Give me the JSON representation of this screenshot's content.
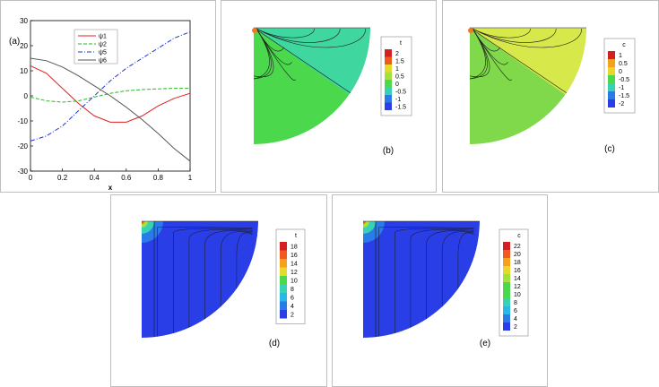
{
  "chart_data": [
    {
      "type": "line",
      "panel_label": "(a)",
      "xlabel": "x",
      "ylabel": "",
      "xlim": [
        0,
        1
      ],
      "ylim": [
        -30,
        30
      ],
      "x_ticks": [
        "0",
        "0.2",
        "0.4",
        "0.6",
        "0.8",
        "1"
      ],
      "y_ticks": [
        "30",
        "20",
        "10",
        "0",
        "-10",
        "-20",
        "-30"
      ],
      "legend_position": "top-center",
      "series": [
        {
          "name": "ψ1",
          "color": "#e02020",
          "dash": "solid",
          "x": [
            0,
            0.1,
            0.2,
            0.3,
            0.4,
            0.5,
            0.6,
            0.7,
            0.8,
            0.9,
            1.0
          ],
          "y": [
            12,
            9,
            3,
            -3,
            -8,
            -10.5,
            -10.5,
            -8,
            -4,
            -1,
            1
          ]
        },
        {
          "name": "ψ2",
          "color": "#22bb22",
          "dash": "dashed",
          "x": [
            0,
            0.1,
            0.2,
            0.3,
            0.4,
            0.5,
            0.6,
            0.7,
            0.8,
            0.9,
            1.0
          ],
          "y": [
            -0.5,
            -2,
            -2.5,
            -2,
            -0.5,
            1,
            2,
            2.5,
            2.8,
            3,
            3
          ]
        },
        {
          "name": "ψ5",
          "color": "#2233dd",
          "dash": "dashdot",
          "x": [
            0,
            0.1,
            0.2,
            0.3,
            0.4,
            0.5,
            0.6,
            0.7,
            0.8,
            0.9,
            1.0
          ],
          "y": [
            -18,
            -16,
            -12,
            -6,
            0,
            6,
            11,
            15,
            19,
            23,
            25.5
          ]
        },
        {
          "name": "ψ6",
          "color": "#555555",
          "dash": "solid",
          "x": [
            0,
            0.1,
            0.2,
            0.3,
            0.4,
            0.5,
            0.6,
            0.7,
            0.8,
            0.9,
            1.0
          ],
          "y": [
            15,
            14,
            11.5,
            8,
            4,
            0,
            -4.5,
            -9.5,
            -15,
            -21,
            -26
          ]
        }
      ]
    },
    {
      "type": "contour",
      "panel_label": "(b)",
      "legend_title": "t",
      "legend_levels": [
        "2",
        "1.5",
        "1",
        "0.5",
        "0",
        "-0.5",
        "-1",
        "-1.5"
      ]
    },
    {
      "type": "contour",
      "panel_label": "(c)",
      "legend_title": "c",
      "legend_levels": [
        "1",
        "0.5",
        "0",
        "-0.5",
        "-1",
        "-1.5",
        "-2"
      ]
    },
    {
      "type": "contour",
      "panel_label": "(d)",
      "legend_title": "t",
      "legend_levels": [
        "18",
        "16",
        "14",
        "12",
        "10",
        "8",
        "6",
        "4",
        "2"
      ]
    },
    {
      "type": "contour",
      "panel_label": "(e)",
      "legend_title": "c",
      "legend_levels": [
        "22",
        "20",
        "18",
        "16",
        "14",
        "12",
        "10",
        "8",
        "6",
        "4",
        "2"
      ]
    }
  ],
  "colors": {
    "contour_b_main": "#4cd84c",
    "contour_b_wedge": "#3fd6a0",
    "contour_c_main": "#7fd94a",
    "contour_c_wedge": "#d6e84a",
    "contour_de_main": "#2a3ee8",
    "rainbow": [
      "#d42020",
      "#f05a1e",
      "#f5a01e",
      "#e8d82a",
      "#a6e03a",
      "#4cd84c",
      "#36d2b4",
      "#2ab6e6",
      "#2a7ae8",
      "#2a3ee8"
    ]
  }
}
